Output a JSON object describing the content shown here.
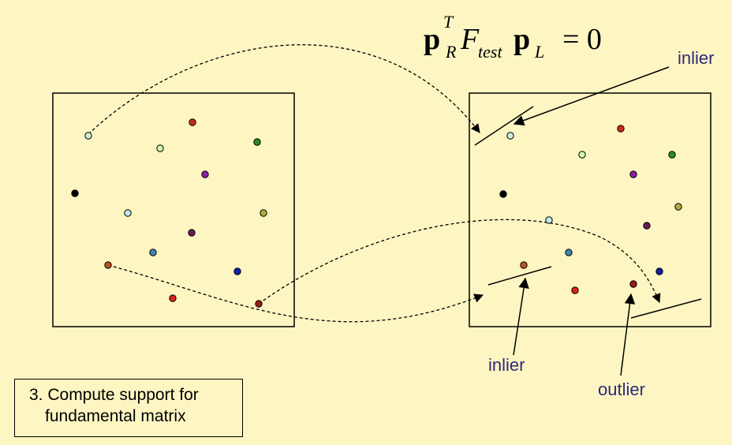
{
  "formula": {
    "p": "p",
    "sup_T": "T",
    "sub_R": "R",
    "F": "F",
    "sub_test": "test",
    "sub_L": "L",
    "rhs": "= 0"
  },
  "labels": {
    "inlier_top": "inlier",
    "inlier_bottom": "inlier",
    "outlier": "outlier"
  },
  "caption": {
    "line1": "3. Compute support for",
    "line2": "fundamental matrix"
  },
  "colors": {
    "background": "#fdf6c3",
    "label_text": "#2e2a7a"
  },
  "left_image_points": [
    {
      "name": "pale-cyan",
      "color": "#c9eed8"
    },
    {
      "name": "red",
      "color": "#cc2a1e"
    },
    {
      "name": "light-green",
      "color": "#cff5a7"
    },
    {
      "name": "dark-green",
      "color": "#2f8a2c"
    },
    {
      "name": "purple",
      "color": "#8e1fa0"
    },
    {
      "name": "black",
      "color": "#000000"
    },
    {
      "name": "light-cyan",
      "color": "#bfe8e4"
    },
    {
      "name": "olive",
      "color": "#b4ab3c"
    },
    {
      "name": "dark-purple",
      "color": "#6a1a5a"
    },
    {
      "name": "steel-blue",
      "color": "#3f86b8"
    },
    {
      "name": "brown-orange",
      "color": "#b8541f"
    },
    {
      "name": "blue",
      "color": "#1020a8"
    },
    {
      "name": "red-2",
      "color": "#dd2222"
    },
    {
      "name": "dark-red",
      "color": "#991d10"
    }
  ],
  "right_image_points": [
    {
      "name": "pale-cyan",
      "color": "#c9eed8"
    },
    {
      "name": "red",
      "color": "#cc2a1e"
    },
    {
      "name": "light-green",
      "color": "#cff5a7"
    },
    {
      "name": "dark-green",
      "color": "#2f8a2c"
    },
    {
      "name": "purple",
      "color": "#8e1fa0"
    },
    {
      "name": "black",
      "color": "#000000"
    },
    {
      "name": "olive",
      "color": "#b4ab3c"
    },
    {
      "name": "light-cyan",
      "color": "#bfe8e4"
    },
    {
      "name": "dark-purple",
      "color": "#6a1a5a"
    },
    {
      "name": "steel-blue",
      "color": "#3f86b8"
    },
    {
      "name": "brown-orange",
      "color": "#b8541f"
    },
    {
      "name": "blue",
      "color": "#1020a8"
    },
    {
      "name": "red-2",
      "color": "#dd2222"
    },
    {
      "name": "dark-red",
      "color": "#991d10"
    }
  ]
}
